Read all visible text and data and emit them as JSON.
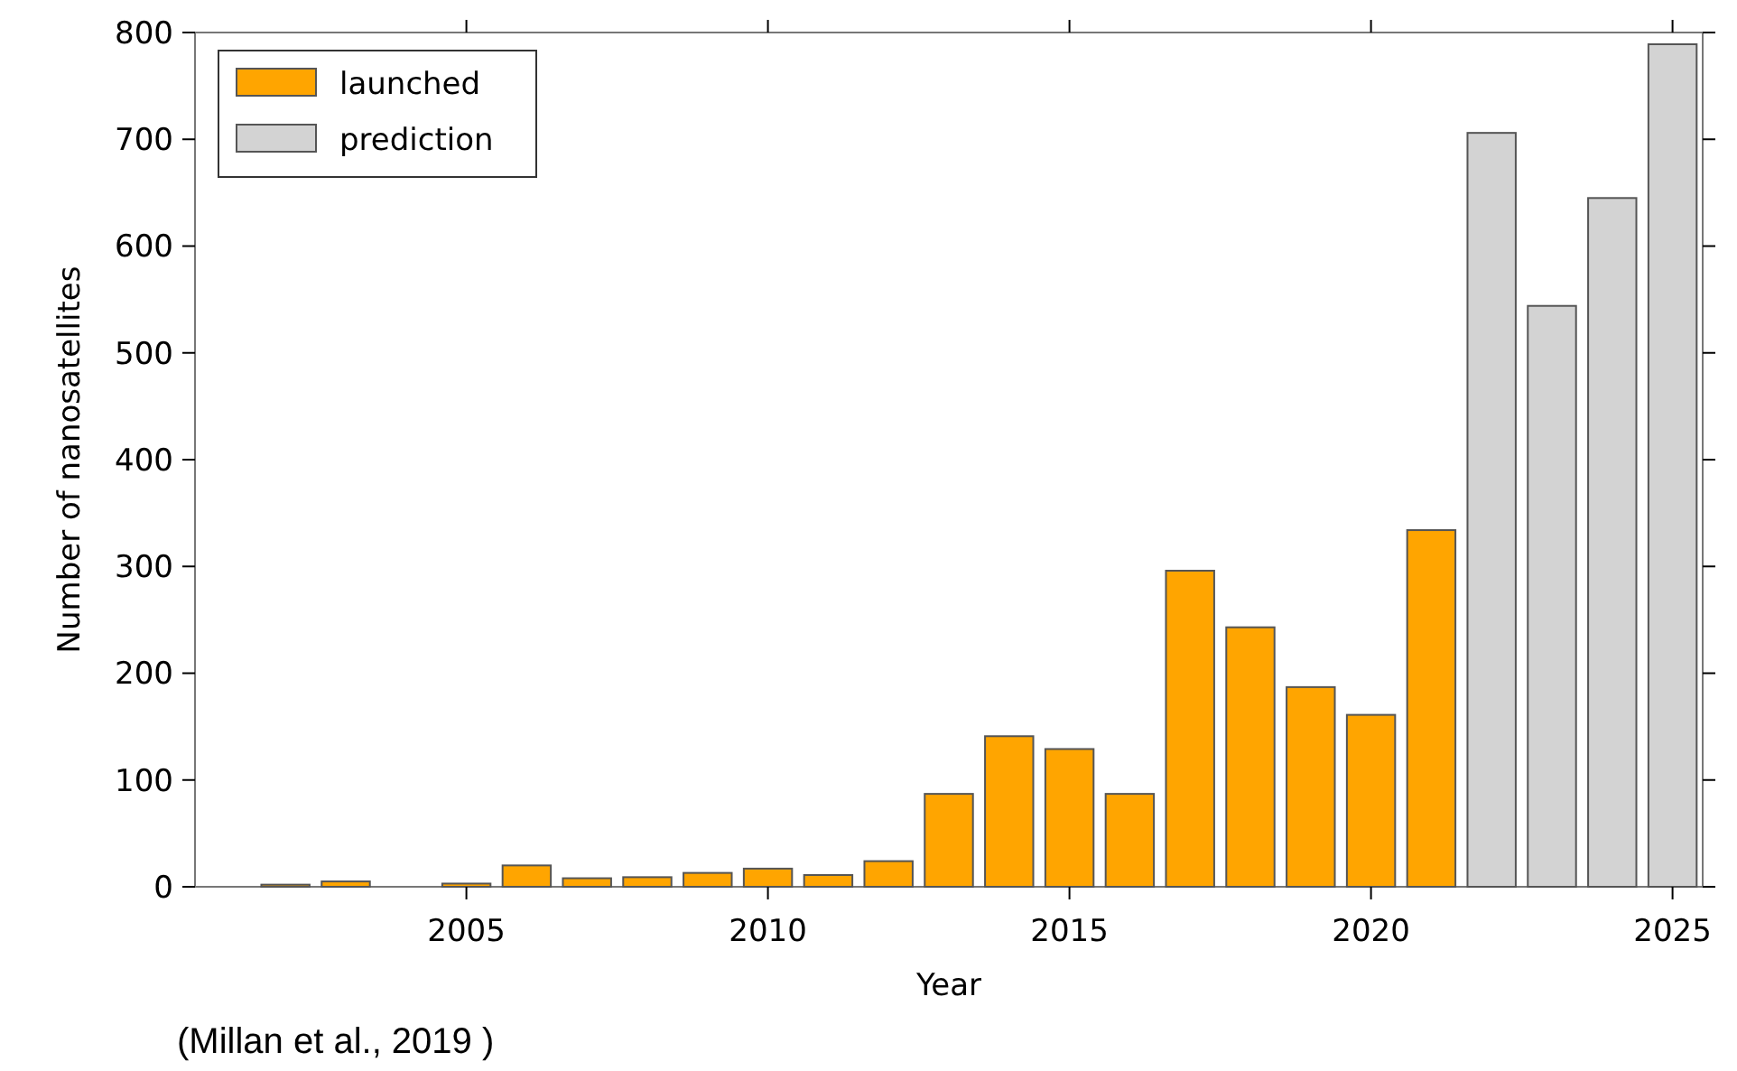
{
  "chart_data": {
    "type": "bar",
    "xlabel": "Year",
    "ylabel": "Number of nanosatellites",
    "series": [
      {
        "name": "launched",
        "color": "#ffa500",
        "x": [
          2002,
          2003,
          2005,
          2006,
          2007,
          2008,
          2009,
          2010,
          2011,
          2012,
          2013,
          2014,
          2015,
          2016,
          2017,
          2018,
          2019,
          2020,
          2021
        ],
        "values": [
          2,
          5,
          3,
          20,
          8,
          9,
          13,
          17,
          11,
          24,
          87,
          141,
          129,
          87,
          296,
          243,
          187,
          161,
          334
        ]
      },
      {
        "name": "prediction",
        "color": "#d3d3d3",
        "x": [
          2022,
          2023,
          2024,
          2025
        ],
        "values": [
          706,
          544,
          645,
          789
        ]
      }
    ],
    "xlim": [
      2000.5,
      2025.5
    ],
    "xticks": [
      2005,
      2010,
      2015,
      2020,
      2025
    ],
    "ylim": [
      0,
      800
    ],
    "yticks": [
      0,
      100,
      200,
      300,
      400,
      500,
      600,
      700,
      800
    ],
    "grid": false,
    "legend": "top left",
    "annotations": [
      "(Millan et al., 2019 )"
    ]
  }
}
